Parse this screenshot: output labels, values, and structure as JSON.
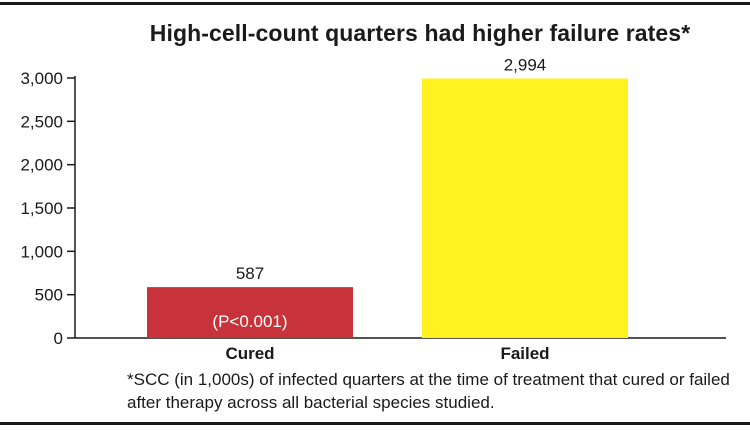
{
  "chart_data": {
    "type": "bar",
    "title": "High-cell-count quarters had higher failure rates*",
    "categories": [
      "Cured",
      "Failed"
    ],
    "values": [
      587,
      2994
    ],
    "value_labels": [
      "587",
      "2,994"
    ],
    "bar_colors": [
      "#c8323b",
      "#fff21f"
    ],
    "annotation": "(P<0.001)",
    "ylim": [
      0,
      3000
    ],
    "yticks": [
      0,
      500,
      1000,
      1500,
      2000,
      2500,
      3000
    ],
    "ytick_labels": [
      "0",
      "500",
      "1,000",
      "1,500",
      "2,000",
      "2,500",
      "3,000"
    ],
    "grid": false,
    "footnote": "*SCC (in 1,000s) of infected quarters at the time of treatment that cured or failed after therapy across all bacterial species studied."
  }
}
